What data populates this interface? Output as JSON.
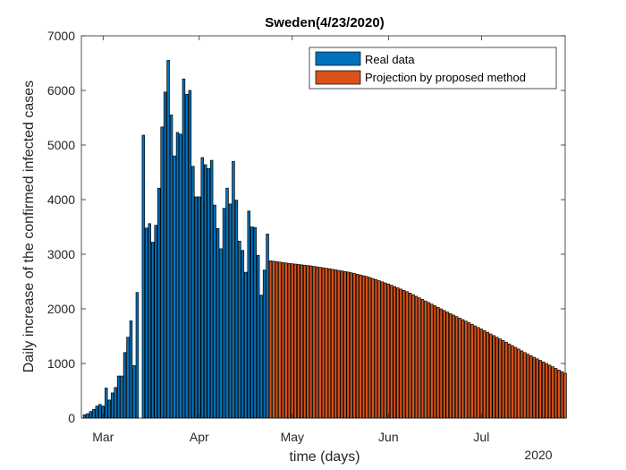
{
  "chart_data": {
    "type": "bar",
    "title": "Sweden(4/23/2020)",
    "xlabel": "time (days)",
    "ylabel": "Daily increase of the confirmed infected cases",
    "year_label": "2020",
    "x_start": "2020-02-23",
    "x_end": "2020-07-28",
    "x_ticks": [
      {
        "date": "2020-03-01",
        "label": "Mar"
      },
      {
        "date": "2020-04-01",
        "label": "Apr"
      },
      {
        "date": "2020-05-01",
        "label": "May"
      },
      {
        "date": "2020-06-01",
        "label": "Jun"
      },
      {
        "date": "2020-07-01",
        "label": "Jul"
      }
    ],
    "ylim": [
      0,
      7000
    ],
    "y_ticks": [
      0,
      1000,
      2000,
      3000,
      4000,
      5000,
      6000,
      7000
    ],
    "grid": false,
    "legend_position": "top-right",
    "series": [
      {
        "name": "Real data",
        "color": "#0072BD",
        "start_date": "2020-02-24",
        "values": [
          60,
          80,
          120,
          160,
          220,
          250,
          220,
          550,
          330,
          460,
          560,
          770,
          770,
          1200,
          1480,
          1780,
          960,
          2300,
          0,
          5180,
          3480,
          3560,
          3220,
          3530,
          4210,
          5330,
          5970,
          6550,
          5550,
          4800,
          5230,
          5200,
          6210,
          5930,
          6000,
          4610,
          4050,
          4050,
          4770,
          4640,
          4570,
          4720,
          3900,
          3470,
          3100,
          3840,
          4210,
          3920,
          4700,
          3990,
          3240,
          3070,
          2670,
          3790,
          3500,
          3490,
          2980,
          2250,
          2710,
          3370
        ]
      },
      {
        "name": "Projection by proposed method",
        "color": "#D95319",
        "start_date": "2020-04-24",
        "end_date": "2020-07-28",
        "start_value": 2880,
        "end_value": 820,
        "shape": [
          0,
          0.0244,
          0.0444,
          0.0707,
          0.1015,
          0.1444,
          0.2065,
          0.278,
          0.3667,
          0.4556,
          0.5409,
          0.6307,
          0.7236,
          0.8208,
          0.9082,
          1
        ]
      }
    ]
  }
}
